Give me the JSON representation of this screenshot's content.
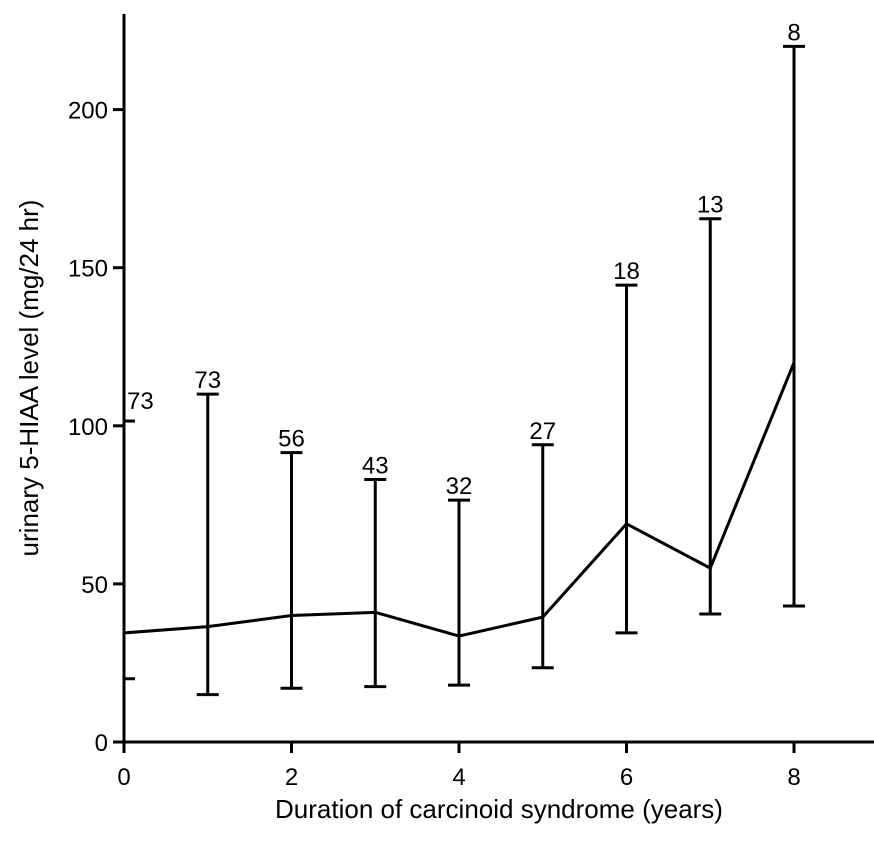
{
  "chart_data": {
    "type": "line",
    "title": "",
    "xlabel": "Duration of carcinoid syndrome (years)",
    "ylabel": "urinary 5-HIAA level (mg/24 hr)",
    "xlim": [
      0,
      9
    ],
    "ylim": [
      0,
      230
    ],
    "x_ticks": [
      0,
      2,
      4,
      6,
      8
    ],
    "x_tick_labels": [
      "0",
      "2",
      "4",
      "6",
      "8"
    ],
    "y_ticks": [
      0,
      50,
      100,
      150,
      200
    ],
    "y_tick_labels": [
      "0",
      "50",
      "100",
      "150",
      "200"
    ],
    "grid": false,
    "legend": "none",
    "line_color": "#000000",
    "series": [
      {
        "x": [
          0,
          1,
          2,
          3,
          4,
          5,
          6,
          7,
          8
        ],
        "values": [
          34.5,
          36.5,
          40,
          41,
          33.5,
          39.5,
          69,
          55,
          120
        ],
        "error_low": [
          20,
          15,
          17,
          17.5,
          18,
          23.5,
          34.5,
          40.5,
          43
        ],
        "error_high": [
          101.5,
          110,
          91.5,
          83,
          76.5,
          94,
          144.5,
          165.5,
          220
        ],
        "n_labels": [
          "73",
          "73",
          "56",
          "43",
          "32",
          "27",
          "18",
          "13",
          "8"
        ]
      }
    ]
  }
}
